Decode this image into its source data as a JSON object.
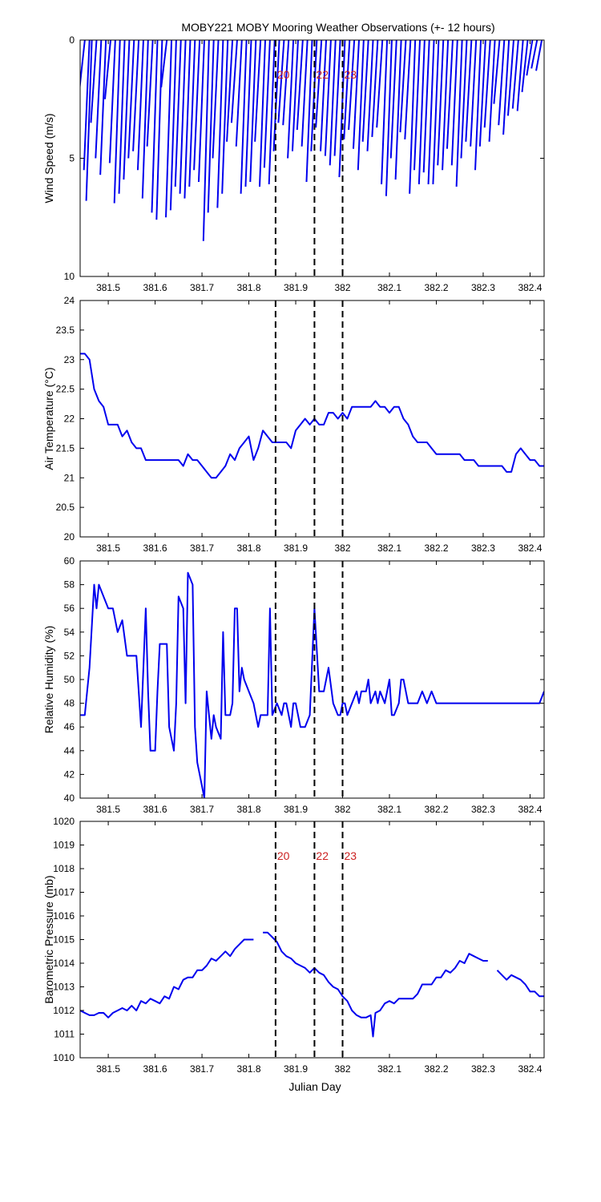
{
  "title": "MOBY221 MOBY Mooring Weather Observations (+- 12 hours)",
  "xlabel": "Julian Day",
  "x_ticks": [
    381.5,
    381.6,
    381.7,
    381.8,
    381.9,
    382,
    382.1,
    382.2,
    382.3,
    382.4
  ],
  "x_tick_labels": [
    "381.5",
    "381.6",
    "381.7",
    "381.8",
    "381.9",
    "382",
    "382.1",
    "382.2",
    "382.3",
    "382.4"
  ],
  "xlim": [
    381.44,
    382.43
  ],
  "event_lines": [
    {
      "x": 381.857,
      "label": "20"
    },
    {
      "x": 381.94,
      "label": "22"
    },
    {
      "x": 382.0,
      "label": "23"
    }
  ],
  "colors": {
    "series": "#0000ee",
    "markers": "#cc2222",
    "frame": "#000000"
  },
  "chart_data": [
    {
      "type": "line",
      "name": "wind",
      "ylabel": "Wind Speed (m/s)",
      "ylim": [
        0,
        10
      ],
      "y_reversed": true,
      "y_ticks": [
        0,
        5,
        10
      ],
      "y_tick_labels": [
        "0",
        "5",
        "10"
      ],
      "show_event_labels": true,
      "wind_sticks": {
        "x": [
          381.45,
          381.46,
          381.465,
          381.475,
          381.485,
          381.495,
          381.505,
          381.515,
          381.525,
          381.535,
          381.545,
          381.555,
          381.565,
          381.575,
          381.585,
          381.595,
          381.605,
          381.615,
          381.625,
          381.635,
          381.645,
          381.655,
          381.665,
          381.675,
          381.685,
          381.695,
          381.705,
          381.715,
          381.725,
          381.735,
          381.745,
          381.755,
          381.765,
          381.775,
          381.785,
          381.795,
          381.805,
          381.815,
          381.825,
          381.835,
          381.845,
          381.855,
          381.865,
          381.875,
          381.885,
          381.895,
          381.905,
          381.915,
          381.925,
          381.935,
          381.945,
          381.955,
          381.965,
          381.975,
          381.985,
          381.995,
          382.005,
          382.015,
          382.025,
          382.035,
          382.045,
          382.055,
          382.065,
          382.075,
          382.085,
          382.095,
          382.105,
          382.115,
          382.125,
          382.135,
          382.145,
          382.155,
          382.165,
          382.175,
          382.185,
          382.195,
          382.205,
          382.215,
          382.225,
          382.235,
          382.245,
          382.255,
          382.265,
          382.275,
          382.285,
          382.295,
          382.305,
          382.315,
          382.325,
          382.335,
          382.345,
          382.355,
          382.365,
          382.375,
          382.385,
          382.395,
          382.405,
          382.415,
          382.425
        ],
        "speed": [
          2.2,
          5.5,
          6.8,
          3.5,
          5.0,
          5.7,
          2.5,
          5.2,
          6.9,
          6.5,
          5.9,
          5.0,
          4.7,
          5.5,
          6.7,
          4.5,
          7.3,
          7.6,
          2.0,
          7.5,
          7.2,
          6.2,
          6.5,
          6.7,
          6.2,
          5.5,
          6.0,
          8.5,
          7.3,
          5.0,
          7.1,
          6.5,
          4.3,
          3.5,
          4.5,
          6.5,
          6.2,
          6.0,
          4.3,
          6.2,
          5.4,
          6.1,
          4.7,
          3.5,
          3.6,
          5.0,
          4.7,
          3.8,
          4.5,
          6.0,
          4.7,
          3.7,
          4.7,
          4.9,
          5.3,
          4.9,
          5.8,
          4.2,
          3.8,
          4.6,
          5.5,
          4.3,
          4.7,
          4.1,
          3.7,
          6.1,
          6.6,
          5.0,
          5.9,
          3.9,
          4.2,
          6.5,
          5.5,
          6.1,
          5.6,
          6.1,
          6.1,
          5.3,
          5.5,
          4.6,
          5.3,
          6.2,
          5.0,
          4.3,
          4.5,
          5.5,
          4.5,
          3.7,
          4.3,
          2.7,
          3.6,
          4.0,
          3.2,
          2.9,
          3.0,
          2.2,
          1.5,
          1.2,
          1.3
        ],
        "dx": -0.012
      }
    },
    {
      "type": "line",
      "name": "air_temperature",
      "ylabel": "Air Temperature (°C)",
      "ylim": [
        20,
        24
      ],
      "y_ticks": [
        20,
        20.5,
        21,
        21.5,
        22,
        22.5,
        23,
        23.5,
        24
      ],
      "y_tick_labels": [
        "20",
        "20.5",
        "21",
        "21.5",
        "22",
        "22.5",
        "23",
        "23.5",
        "24"
      ],
      "show_event_labels": false,
      "segments": [
        {
          "x": [
            381.44,
            381.45,
            381.46,
            381.47,
            381.48,
            381.49,
            381.5,
            381.51,
            381.52,
            381.53,
            381.54,
            381.55,
            381.56,
            381.57,
            381.58,
            381.59,
            381.6,
            381.61,
            381.62,
            381.63,
            381.64,
            381.65,
            381.66,
            381.67,
            381.68,
            381.69,
            381.7,
            381.71,
            381.72,
            381.73,
            381.74,
            381.75,
            381.76,
            381.77,
            381.78,
            381.79,
            381.8,
            381.81,
            381.82,
            381.83,
            381.84,
            381.85,
            381.86,
            381.87,
            381.88,
            381.89,
            381.9,
            381.91,
            381.92,
            381.93,
            381.94,
            381.95,
            381.96,
            381.97,
            381.98,
            381.99,
            382.0,
            382.01,
            382.02,
            382.03,
            382.04,
            382.05,
            382.06,
            382.07,
            382.08,
            382.09,
            382.1,
            382.11,
            382.12,
            382.13,
            382.14,
            382.15,
            382.16,
            382.17,
            382.18,
            382.19,
            382.2,
            382.21,
            382.22,
            382.23,
            382.24,
            382.25,
            382.26,
            382.27,
            382.28,
            382.29,
            382.3,
            382.31,
            382.32,
            382.33,
            382.34,
            382.35,
            382.36,
            382.37,
            382.38,
            382.39,
            382.4,
            382.41,
            382.42,
            382.43
          ],
          "y": [
            23.1,
            23.1,
            23.0,
            22.5,
            22.3,
            22.2,
            21.9,
            21.9,
            21.9,
            21.7,
            21.8,
            21.6,
            21.5,
            21.5,
            21.3,
            21.3,
            21.3,
            21.3,
            21.3,
            21.3,
            21.3,
            21.3,
            21.2,
            21.4,
            21.3,
            21.3,
            21.2,
            21.1,
            21.0,
            21.0,
            21.1,
            21.2,
            21.4,
            21.3,
            21.5,
            21.6,
            21.7,
            21.3,
            21.5,
            21.8,
            21.7,
            21.6,
            21.6,
            21.6,
            21.6,
            21.5,
            21.8,
            21.9,
            22.0,
            21.9,
            22.0,
            21.9,
            21.9,
            22.1,
            22.1,
            22.0,
            22.1,
            22.0,
            22.2,
            22.2,
            22.2,
            22.2,
            22.2,
            22.3,
            22.2,
            22.2,
            22.1,
            22.2,
            22.2,
            22.0,
            21.9,
            21.7,
            21.6,
            21.6,
            21.6,
            21.5,
            21.4,
            21.4,
            21.4,
            21.4,
            21.4,
            21.4,
            21.3,
            21.3,
            21.3,
            21.2,
            21.2,
            21.2,
            21.2,
            21.2,
            21.2,
            21.1,
            21.1,
            21.4,
            21.5,
            21.4,
            21.3,
            21.3,
            21.2,
            21.2
          ]
        }
      ]
    },
    {
      "type": "line",
      "name": "relative_humidity",
      "ylabel": "Relative Humidity (%)",
      "ylim": [
        40,
        60
      ],
      "y_ticks": [
        40,
        42,
        44,
        46,
        48,
        50,
        52,
        54,
        56,
        58,
        60
      ],
      "y_tick_labels": [
        "40",
        "42",
        "44",
        "46",
        "48",
        "50",
        "52",
        "54",
        "56",
        "58",
        "60"
      ],
      "show_event_labels": false,
      "segments": [
        {
          "x": [
            381.44,
            381.45,
            381.46,
            381.47,
            381.475,
            381.48,
            381.49,
            381.5,
            381.51,
            381.52,
            381.53,
            381.54,
            381.55,
            381.56,
            381.57,
            381.58,
            381.585,
            381.59,
            381.6,
            381.605,
            381.61,
            381.62,
            381.625,
            381.63,
            381.64,
            381.645,
            381.65,
            381.66,
            381.665,
            381.67,
            381.68,
            381.685,
            381.69,
            381.7,
            381.705,
            381.71,
            381.72,
            381.725,
            381.73,
            381.74,
            381.745,
            381.75,
            381.76,
            381.765,
            381.77,
            381.775,
            381.78,
            381.785,
            381.79,
            381.8,
            381.81,
            381.82,
            381.825,
            381.83,
            381.84,
            381.845,
            381.85,
            381.86,
            381.87,
            381.875,
            381.88,
            381.89,
            381.895,
            381.9,
            381.91,
            381.92,
            381.93,
            381.94,
            381.95,
            381.96,
            381.97,
            381.98,
            381.99,
            381.995,
            382.0,
            382.005,
            382.01,
            382.02,
            382.03,
            382.035,
            382.04,
            382.05,
            382.055,
            382.06,
            382.07,
            382.075,
            382.08,
            382.09,
            382.1,
            382.105,
            382.11,
            382.12,
            382.125,
            382.13,
            382.14,
            382.15,
            382.16,
            382.17,
            382.18,
            382.19,
            382.2,
            382.21,
            382.22,
            382.23,
            382.24,
            382.25,
            382.26,
            382.27,
            382.28,
            382.29,
            382.3,
            382.31,
            382.32,
            382.33,
            382.34,
            382.35,
            382.36,
            382.37,
            382.38,
            382.39,
            382.4,
            382.41,
            382.42,
            382.43
          ],
          "y": [
            47,
            47,
            51,
            58,
            56,
            58,
            57,
            56,
            56,
            54,
            55,
            52,
            52,
            52,
            46,
            56,
            49,
            44,
            44,
            49,
            53,
            53,
            53,
            46,
            44,
            48,
            57,
            56,
            48,
            59,
            58,
            46,
            43,
            41,
            40,
            49,
            45,
            47,
            46,
            45,
            54,
            47,
            47,
            48,
            56,
            56,
            49,
            51,
            50,
            49,
            48,
            46,
            47,
            47,
            47,
            56,
            47,
            48,
            47,
            48,
            48,
            46,
            48,
            48,
            46,
            46,
            47,
            56,
            49,
            49,
            51,
            48,
            47,
            47,
            48,
            48,
            47,
            48,
            49,
            48,
            49,
            49,
            50,
            48,
            49,
            48,
            49,
            48,
            50,
            47,
            47,
            48,
            50,
            50,
            48,
            48,
            48,
            49,
            48,
            49,
            48,
            48,
            48,
            48,
            48,
            48,
            48,
            48,
            48,
            48,
            48,
            48,
            48,
            48,
            48,
            48,
            48,
            48,
            48,
            48,
            48,
            48,
            48,
            49
          ]
        }
      ]
    },
    {
      "type": "line",
      "name": "barometric_pressure",
      "ylabel": "Barometric Pressure (mb)",
      "ylim": [
        1010,
        1020
      ],
      "y_ticks": [
        1010,
        1011,
        1012,
        1013,
        1014,
        1015,
        1016,
        1017,
        1018,
        1019,
        1020
      ],
      "y_tick_labels": [
        "1010",
        "1011",
        "1012",
        "1013",
        "1014",
        "1015",
        "1016",
        "1017",
        "1018",
        "1019",
        "1020"
      ],
      "show_event_labels": true,
      "segments": [
        {
          "x": [
            381.44,
            381.45,
            381.46,
            381.47,
            381.48,
            381.49,
            381.5,
            381.51,
            381.52,
            381.53,
            381.54,
            381.55,
            381.56,
            381.57,
            381.58,
            381.59,
            381.6,
            381.61,
            381.62,
            381.63,
            381.64,
            381.65,
            381.66,
            381.67,
            381.68,
            381.69,
            381.7,
            381.71,
            381.72,
            381.73,
            381.74,
            381.75,
            381.76,
            381.77,
            381.78,
            381.79,
            381.8,
            381.81
          ],
          "y": [
            1012.0,
            1011.9,
            1011.8,
            1011.8,
            1011.9,
            1011.9,
            1011.7,
            1011.9,
            1012.0,
            1012.1,
            1012.0,
            1012.2,
            1012.0,
            1012.4,
            1012.3,
            1012.5,
            1012.4,
            1012.3,
            1012.6,
            1012.5,
            1013.0,
            1012.9,
            1013.3,
            1013.4,
            1013.4,
            1013.7,
            1013.7,
            1013.9,
            1014.2,
            1014.1,
            1014.3,
            1014.5,
            1014.3,
            1014.6,
            1014.8,
            1015.0,
            1015.0,
            1015.0
          ]
        },
        {
          "x": [
            381.83,
            381.84,
            381.85,
            381.86,
            381.87,
            381.88,
            381.89,
            381.9,
            381.91,
            381.92,
            381.93,
            381.94,
            381.95,
            381.96,
            381.97,
            381.98,
            381.99,
            382.0,
            382.01,
            382.02,
            382.03,
            382.04,
            382.05,
            382.06,
            382.065,
            382.07,
            382.08,
            382.09,
            382.1,
            382.11,
            382.12,
            382.13,
            382.14,
            382.15,
            382.16,
            382.17,
            382.18,
            382.19,
            382.2,
            382.21,
            382.22,
            382.23,
            382.24,
            382.25,
            382.26,
            382.27,
            382.28,
            382.29,
            382.3,
            382.31
          ],
          "y": [
            1015.3,
            1015.3,
            1015.1,
            1014.9,
            1014.5,
            1014.3,
            1014.2,
            1014.0,
            1013.9,
            1013.8,
            1013.6,
            1013.8,
            1013.6,
            1013.5,
            1013.2,
            1013.0,
            1012.9,
            1012.6,
            1012.4,
            1012.0,
            1011.8,
            1011.7,
            1011.7,
            1011.8,
            1010.9,
            1011.9,
            1012.0,
            1012.3,
            1012.4,
            1012.3,
            1012.5,
            1012.5,
            1012.5,
            1012.5,
            1012.7,
            1013.1,
            1013.1,
            1013.1,
            1013.4,
            1013.4,
            1013.7,
            1013.6,
            1013.8,
            1014.1,
            1014.0,
            1014.4,
            1014.3,
            1014.2,
            1014.1,
            1014.1
          ]
        },
        {
          "x": [
            382.33,
            382.34,
            382.35,
            382.36,
            382.37,
            382.38,
            382.39,
            382.4,
            382.41,
            382.42,
            382.43
          ],
          "y": [
            1013.7,
            1013.5,
            1013.3,
            1013.5,
            1013.4,
            1013.3,
            1013.1,
            1012.8,
            1012.8,
            1012.6,
            1012.6
          ]
        }
      ]
    }
  ]
}
